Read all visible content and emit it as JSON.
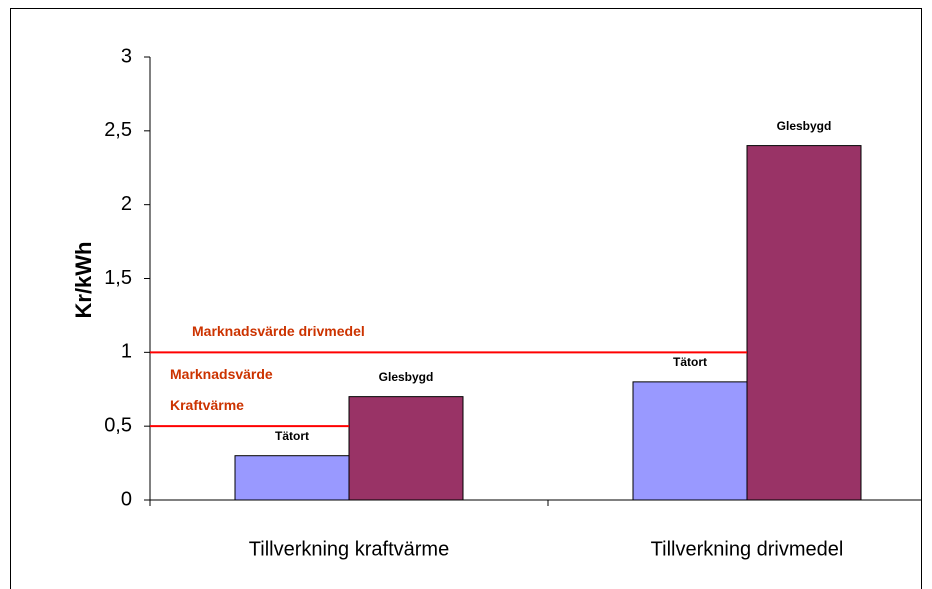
{
  "chart_data": {
    "type": "bar",
    "y_label": "Kr/kWh",
    "categories": [
      "Tillverkning kraftvärme",
      "Tillverkning drivmedel"
    ],
    "series": [
      {
        "name": "Tätort",
        "color": "#9999ff",
        "values": [
          0.3,
          0.8
        ]
      },
      {
        "name": "Glesbygd",
        "color": "#993366",
        "values": [
          0.7,
          2.4
        ]
      }
    ],
    "ylim": [
      0,
      3
    ],
    "yticks": [
      0,
      {
        "value": 0.5,
        "label": "0,5"
      },
      1,
      {
        "value": 1.5,
        "label": "1,5"
      },
      2,
      {
        "value": 2.5,
        "label": "2,5"
      },
      3
    ],
    "reference_lines": [
      {
        "label_lines": [
          "Marknadsvärde",
          "Kraftvärme"
        ],
        "value": 0.5,
        "color": "#ff0000",
        "text_color": "#cc3300"
      },
      {
        "label_lines": [
          "Marknadsvärde drivmedel"
        ],
        "value": 1,
        "color": "#ff0000",
        "text_color": "#cc3300"
      }
    ]
  }
}
